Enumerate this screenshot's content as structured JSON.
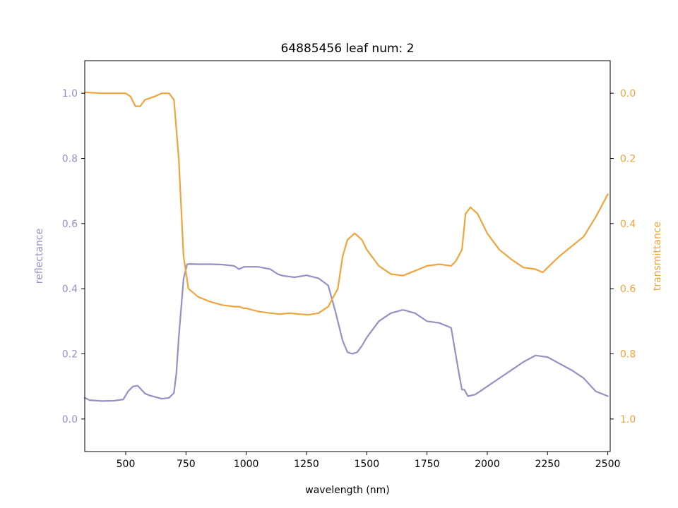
{
  "chart_data": {
    "type": "line",
    "title": "64885456 leaf num: 2",
    "xlabel": "wavelength (nm)",
    "ylabel_left": "reflectance",
    "ylabel_right": "transmittance",
    "xlim": [
      330,
      2510
    ],
    "ylim_left": [
      -0.1,
      1.1
    ],
    "ylim_right": [
      1.1,
      -0.1
    ],
    "y_right_inverted": true,
    "x_ticks": [
      500,
      750,
      1000,
      1250,
      1500,
      1750,
      2000,
      2250,
      2500
    ],
    "y_left_ticks": [
      0.0,
      0.2,
      0.4,
      0.6,
      0.8,
      1.0
    ],
    "y_left_tick_labels": [
      "0.0",
      "0.2",
      "0.4",
      "0.6",
      "0.8",
      "1.0"
    ],
    "y_right_ticks": [
      0.0,
      0.2,
      0.4,
      0.6,
      0.8,
      1.0
    ],
    "y_right_tick_labels": [
      "0.0",
      "0.2",
      "0.4",
      "0.6",
      "0.8",
      "1.0"
    ],
    "grid": false,
    "legend": "none",
    "colors": {
      "reflectance": "#9491c4",
      "transmittance": "#f0a43c",
      "axes": "#000000"
    },
    "series": [
      {
        "axis": "left",
        "color": "#9491c4",
        "x": [
          330,
          350,
          400,
          450,
          490,
          510,
          530,
          550,
          565,
          580,
          600,
          650,
          680,
          700,
          710,
          720,
          740,
          755,
          770,
          800,
          850,
          900,
          950,
          970,
          990,
          1000,
          1050,
          1100,
          1130,
          1150,
          1200,
          1250,
          1300,
          1340,
          1370,
          1400,
          1420,
          1440,
          1460,
          1480,
          1500,
          1550,
          1600,
          1650,
          1700,
          1750,
          1800,
          1850,
          1880,
          1895,
          1905,
          1920,
          1950,
          2000,
          2050,
          2100,
          2150,
          2200,
          2250,
          2300,
          2350,
          2400,
          2450,
          2500
        ],
        "y": [
          0.065,
          0.058,
          0.055,
          0.056,
          0.06,
          0.085,
          0.1,
          0.102,
          0.09,
          0.078,
          0.072,
          0.062,
          0.065,
          0.08,
          0.14,
          0.25,
          0.43,
          0.475,
          0.476,
          0.475,
          0.475,
          0.474,
          0.47,
          0.46,
          0.467,
          0.467,
          0.467,
          0.46,
          0.445,
          0.44,
          0.435,
          0.441,
          0.432,
          0.41,
          0.33,
          0.24,
          0.205,
          0.2,
          0.205,
          0.225,
          0.25,
          0.3,
          0.325,
          0.335,
          0.325,
          0.3,
          0.295,
          0.28,
          0.15,
          0.09,
          0.09,
          0.07,
          0.075,
          0.1,
          0.125,
          0.15,
          0.175,
          0.195,
          0.19,
          0.17,
          0.15,
          0.125,
          0.085,
          0.07
        ]
      },
      {
        "axis": "right",
        "color": "#f0a43c",
        "x": [
          330,
          350,
          400,
          450,
          500,
          520,
          540,
          560,
          580,
          620,
          650,
          680,
          700,
          720,
          740,
          760,
          800,
          850,
          900,
          950,
          970,
          990,
          1000,
          1050,
          1100,
          1140,
          1180,
          1220,
          1260,
          1300,
          1340,
          1380,
          1400,
          1420,
          1450,
          1480,
          1500,
          1550,
          1600,
          1650,
          1700,
          1750,
          1800,
          1850,
          1870,
          1895,
          1910,
          1930,
          1960,
          2000,
          2050,
          2100,
          2150,
          2200,
          2230,
          2250,
          2300,
          2350,
          2400,
          2450,
          2500
        ],
        "y": [
          -0.003,
          -0.002,
          0.0,
          0.0,
          0.0,
          0.01,
          0.04,
          0.04,
          0.02,
          0.01,
          0.0,
          0.0,
          0.02,
          0.2,
          0.5,
          0.6,
          0.625,
          0.64,
          0.65,
          0.655,
          0.655,
          0.66,
          0.66,
          0.67,
          0.675,
          0.678,
          0.675,
          0.678,
          0.68,
          0.675,
          0.655,
          0.6,
          0.5,
          0.45,
          0.43,
          0.45,
          0.48,
          0.53,
          0.555,
          0.56,
          0.545,
          0.53,
          0.525,
          0.53,
          0.515,
          0.48,
          0.37,
          0.35,
          0.37,
          0.43,
          0.48,
          0.51,
          0.535,
          0.54,
          0.55,
          0.535,
          0.5,
          0.47,
          0.44,
          0.38,
          0.31
        ]
      }
    ]
  }
}
